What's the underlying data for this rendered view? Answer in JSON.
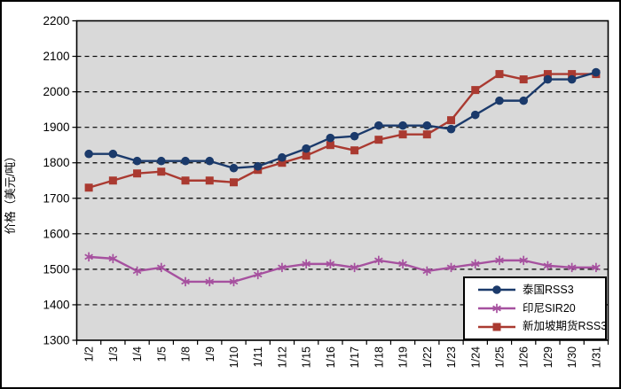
{
  "chart_data": {
    "type": "line",
    "title": "",
    "ylabel": "价格（美元/吨）",
    "xlabel": "",
    "ylim": [
      1300,
      2200
    ],
    "ytick_step": 100,
    "yticks": [
      1300,
      1400,
      1500,
      1600,
      1700,
      1800,
      1900,
      2000,
      2100,
      2200
    ],
    "grid": "horizontal-dashed",
    "plot_bg": "#d9d9d9",
    "grid_color": "#000000",
    "legend_position": "inside-bottom-right",
    "categories": [
      "1/2",
      "1/3",
      "1/4",
      "1/5",
      "1/8",
      "1/9",
      "1/10",
      "1/11",
      "1/12",
      "1/15",
      "1/16",
      "1/17",
      "1/18",
      "1/19",
      "1/22",
      "1/23",
      "1/24",
      "1/25",
      "1/26",
      "1/29",
      "1/30",
      "1/31"
    ],
    "series": [
      {
        "name": "泰国RSS3",
        "color": "#1b3a6b",
        "marker": "circle",
        "values": [
          1825,
          1825,
          1805,
          1805,
          1805,
          1805,
          1785,
          1790,
          1815,
          1840,
          1870,
          1875,
          1905,
          1905,
          1905,
          1895,
          1935,
          1975,
          1975,
          2035,
          2035,
          2055
        ]
      },
      {
        "name": "印尼SIR20",
        "color": "#a6519f",
        "marker": "asterisk",
        "values": [
          1535,
          1530,
          1495,
          1505,
          1465,
          1465,
          1465,
          1485,
          1505,
          1515,
          1515,
          1505,
          1525,
          1515,
          1495,
          1505,
          1515,
          1525,
          1525,
          1510,
          1505,
          1505
        ]
      },
      {
        "name": "新加坡期货RSS3",
        "color": "#aa3a31",
        "marker": "square",
        "values": [
          1730,
          1750,
          1770,
          1775,
          1750,
          1750,
          1745,
          1780,
          1800,
          1820,
          1850,
          1835,
          1865,
          1880,
          1880,
          1920,
          2005,
          2050,
          2035,
          2050,
          2050,
          2050
        ]
      }
    ]
  }
}
